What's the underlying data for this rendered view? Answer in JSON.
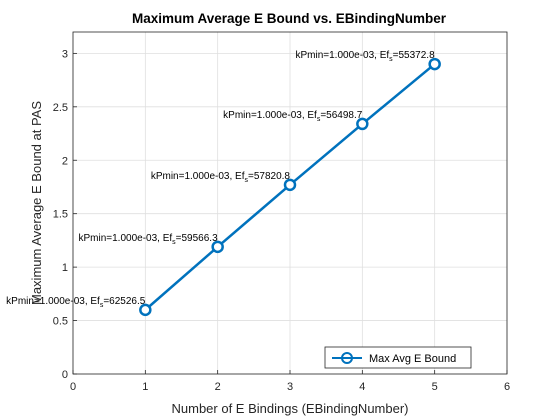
{
  "chart_data": {
    "type": "line",
    "title": "Maximum Average E Bound vs. EBindingNumber",
    "xlabel": "Number of E Bindings (EBindingNumber)",
    "ylabel": "Maximum Average E Bound at PAS",
    "xlim": [
      0,
      6
    ],
    "ylim": [
      0,
      3.2
    ],
    "xticks": [
      0,
      1,
      2,
      3,
      4,
      5,
      6
    ],
    "yticks": [
      0,
      0.5,
      1,
      1.5,
      2,
      2.5,
      3
    ],
    "xtick_labels": [
      "0",
      "1",
      "2",
      "3",
      "4",
      "5",
      "6"
    ],
    "ytick_labels": [
      "0",
      "0.5",
      "1",
      "1.5",
      "2",
      "2.5",
      "3"
    ],
    "grid": true,
    "legend_position": "bottom-right",
    "series": [
      {
        "name": "Max Avg E Bound",
        "color": "#0072BD",
        "marker": "circle",
        "x": [
          1,
          2,
          3,
          4,
          5
        ],
        "y": [
          0.6,
          1.19,
          1.77,
          2.34,
          2.9
        ]
      }
    ],
    "annotations": [
      {
        "x": 1,
        "y": 0.6,
        "prefix": "kPmin=1.000e-03, Ef",
        "sub": "s",
        "suffix": "=62526.5"
      },
      {
        "x": 2,
        "y": 1.19,
        "prefix": "kPmin=1.000e-03, Ef",
        "sub": "s",
        "suffix": "=59566.3"
      },
      {
        "x": 3,
        "y": 1.77,
        "prefix": "kPmin=1.000e-03, Ef",
        "sub": "s",
        "suffix": "=57820.8"
      },
      {
        "x": 4,
        "y": 2.34,
        "prefix": "kPmin=1.000e-03, Ef",
        "sub": "s",
        "suffix": "=56498.7"
      },
      {
        "x": 5,
        "y": 2.9,
        "prefix": "kPmin=1.000e-03, Ef",
        "sub": "s",
        "suffix": "=55372.8"
      }
    ]
  }
}
